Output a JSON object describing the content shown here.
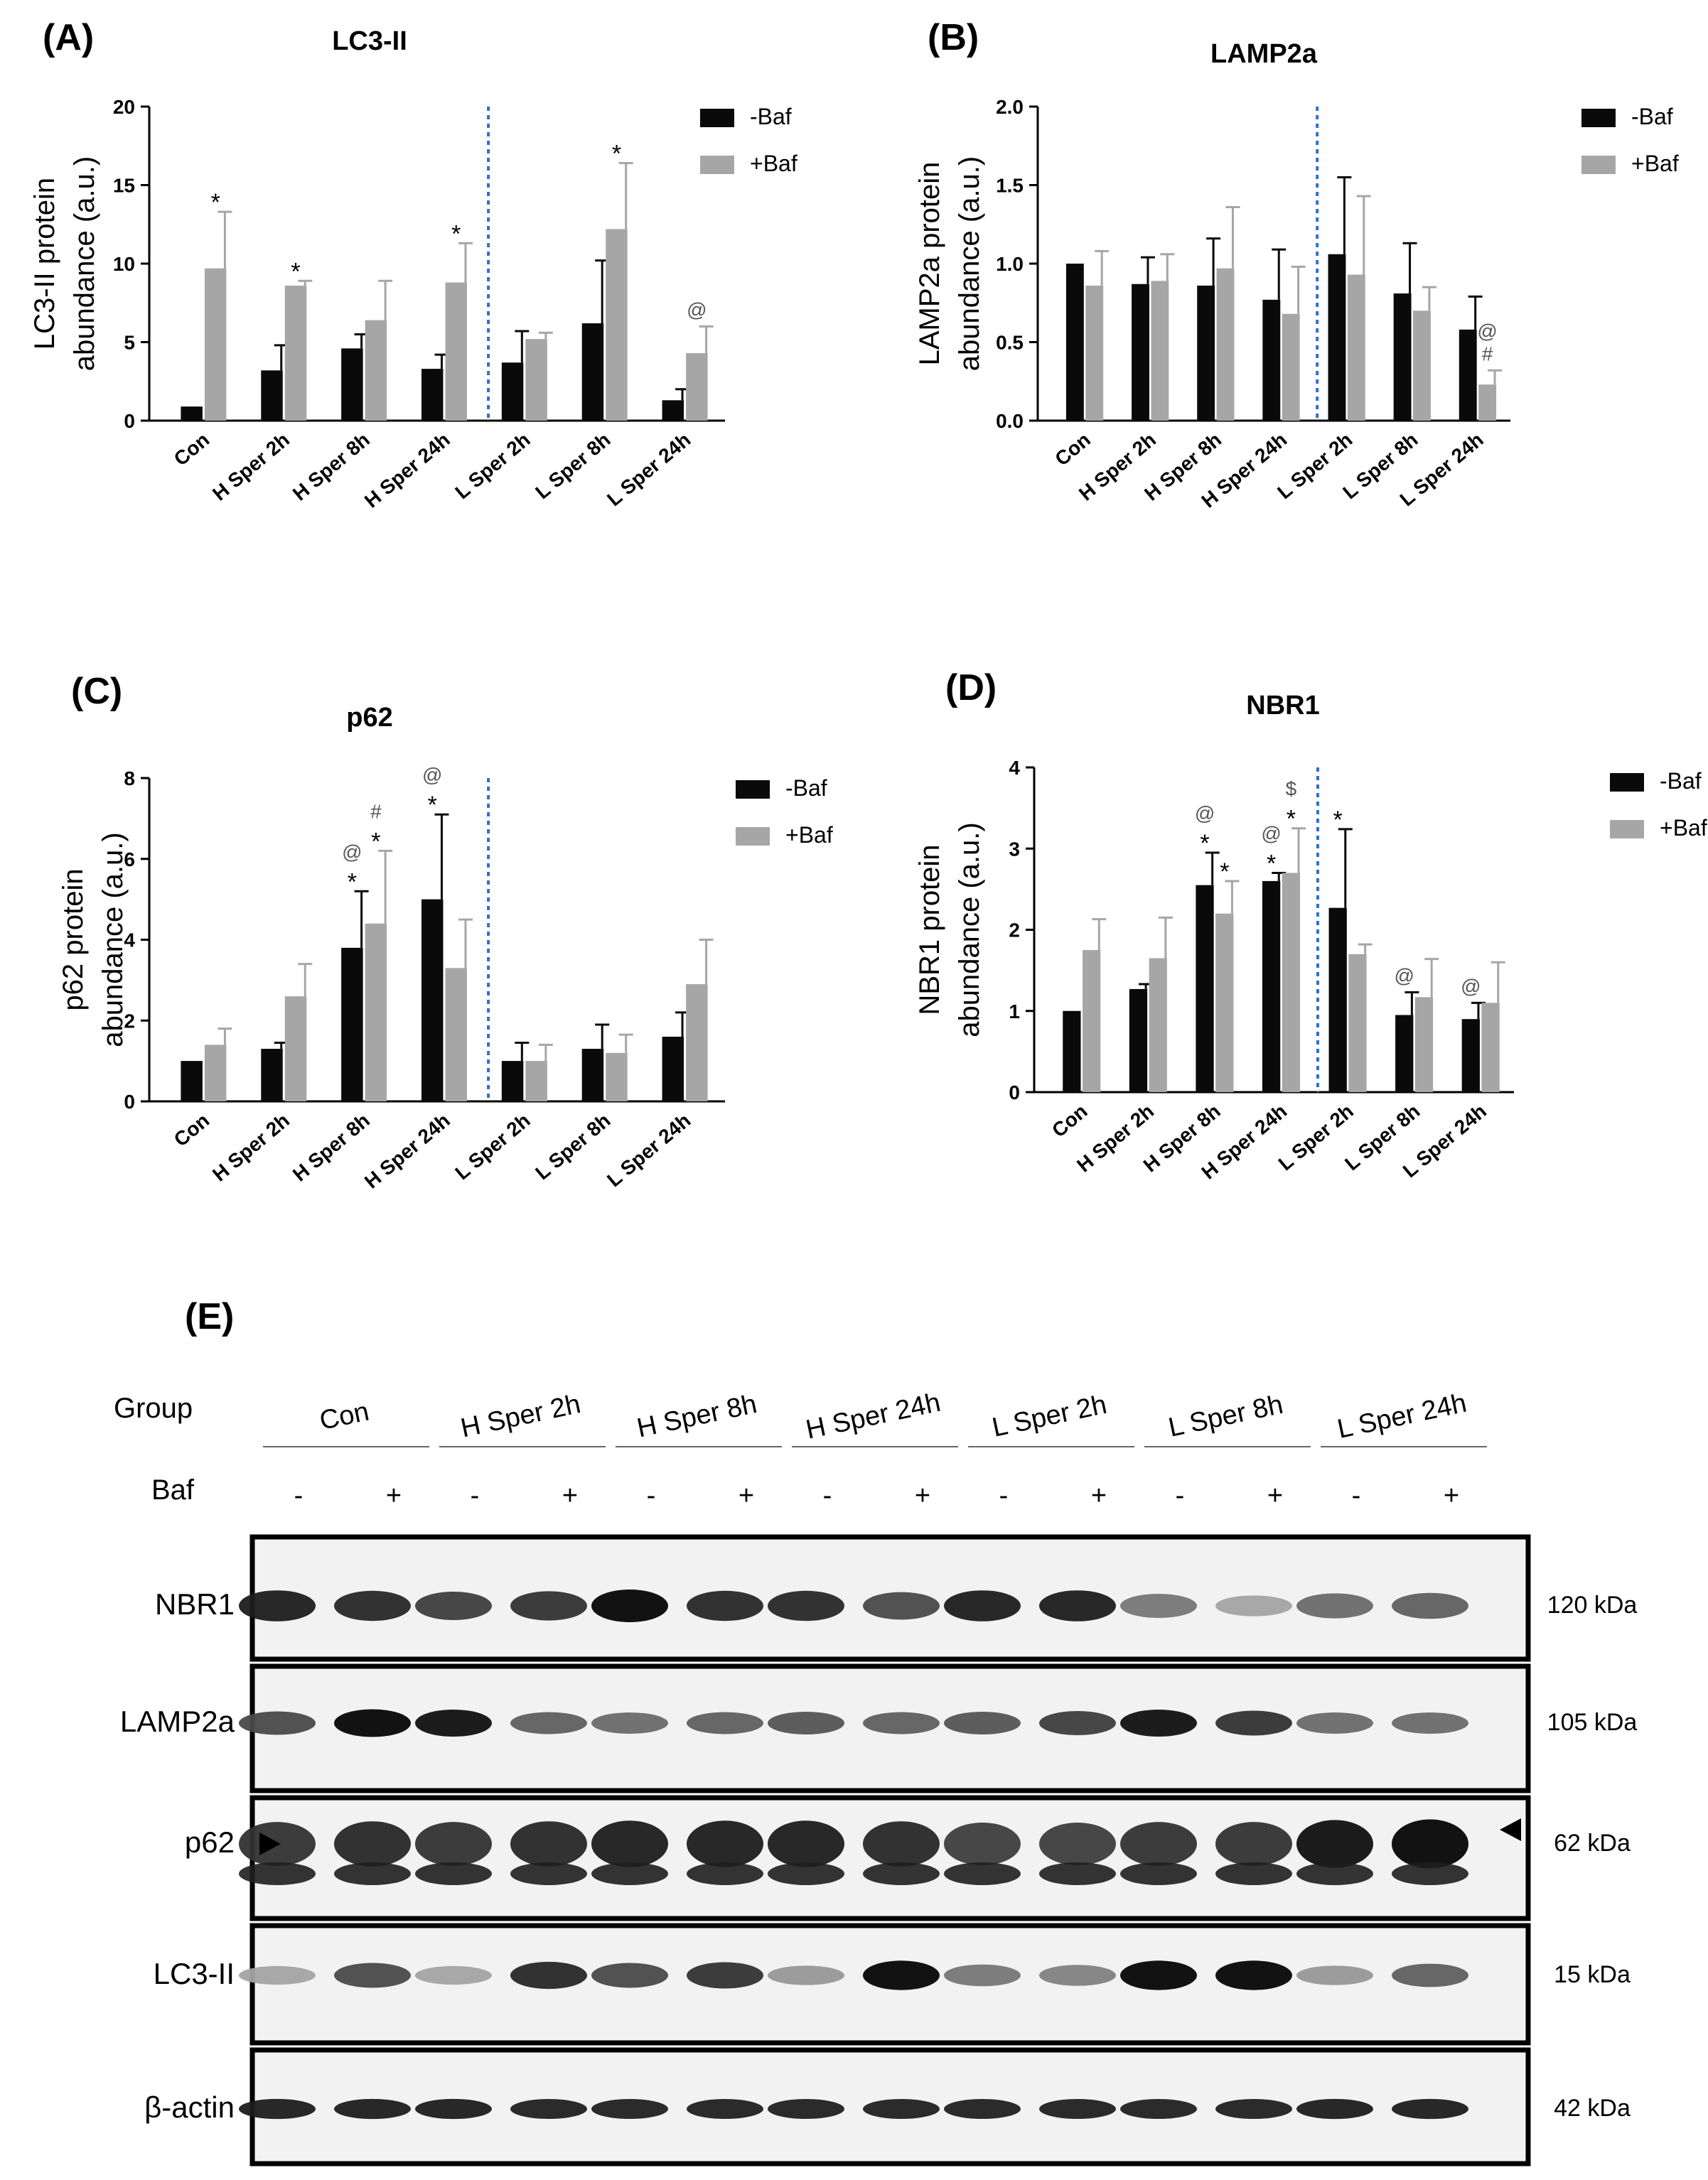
{
  "colors": {
    "minus_baf": "#0a0a0a",
    "plus_baf": "#a6a6a6",
    "divider": "#2f6fd6",
    "annotation_gray": "#555555"
  },
  "legend": {
    "minus": "-Baf",
    "plus": "+Baf"
  },
  "chart_data": [
    {
      "panel": "(A)",
      "title": "LC3-II",
      "type": "bar",
      "ylabel_lines": [
        "LC3-II protein",
        "abundance (a.u.)"
      ],
      "ylim": [
        0,
        20
      ],
      "yticks": [
        0,
        5,
        10,
        15,
        20
      ],
      "categories": [
        "Con",
        "H Sper 2h",
        "H Sper 8h",
        "H Sper 24h",
        "L Sper 2h",
        "L Sper 8h",
        "L Sper 24h"
      ],
      "divider_after_index": 3,
      "series": [
        {
          "name": "-Baf",
          "values": [
            0.9,
            3.2,
            4.6,
            3.3,
            3.7,
            6.2,
            1.3
          ],
          "errors": [
            0.0,
            1.6,
            0.9,
            0.9,
            2.0,
            4.0,
            0.7
          ]
        },
        {
          "name": "+Baf",
          "values": [
            9.7,
            8.6,
            6.4,
            8.8,
            5.2,
            12.2,
            4.3
          ],
          "errors": [
            3.6,
            0.3,
            2.5,
            2.5,
            0.4,
            4.2,
            1.7
          ]
        }
      ],
      "annotations": [
        {
          "index": 0,
          "series": 1,
          "lines": [
            "*"
          ]
        },
        {
          "index": 1,
          "series": 1,
          "lines": [
            "*"
          ]
        },
        {
          "index": 3,
          "series": 1,
          "lines": [
            "*"
          ]
        },
        {
          "index": 5,
          "series": 1,
          "lines": [
            "*"
          ]
        },
        {
          "index": 6,
          "series": 1,
          "lines": [
            "@"
          ]
        }
      ]
    },
    {
      "panel": "(B)",
      "title": "LAMP2a",
      "type": "bar",
      "ylabel_lines": [
        "LAMP2a protein",
        "abundance (a.u.)"
      ],
      "ylim": [
        0,
        2.0
      ],
      "yticks": [
        0.0,
        0.5,
        1.0,
        1.5,
        2.0
      ],
      "ytick_labels": [
        "0.0",
        "0.5",
        "1.0",
        "1.5",
        "2.0"
      ],
      "categories": [
        "Con",
        "H Sper 2h",
        "H Sper 8h",
        "H Sper 24h",
        "L Sper 2h",
        "L Sper 8h",
        "L Sper 24h"
      ],
      "divider_after_index": 3,
      "series": [
        {
          "name": "-Baf",
          "values": [
            1.0,
            0.87,
            0.86,
            0.77,
            1.06,
            0.81,
            0.58
          ],
          "errors": [
            0.0,
            0.17,
            0.3,
            0.32,
            0.49,
            0.32,
            0.21
          ]
        },
        {
          "name": "+Baf",
          "values": [
            0.86,
            0.89,
            0.97,
            0.68,
            0.93,
            0.7,
            0.23
          ],
          "errors": [
            0.22,
            0.17,
            0.39,
            0.3,
            0.5,
            0.15,
            0.09
          ]
        }
      ],
      "annotations": [
        {
          "index": 6,
          "series": 1,
          "lines": [
            "@",
            "#"
          ]
        }
      ]
    },
    {
      "panel": "(C)",
      "title": "p62",
      "type": "bar",
      "ylabel_lines": [
        "p62 protein",
        "abundance (a.u.)"
      ],
      "ylim": [
        0,
        8
      ],
      "yticks": [
        0,
        2,
        4,
        6,
        8
      ],
      "categories": [
        "Con",
        "H Sper 2h",
        "H Sper 8h",
        "H Sper 24h",
        "L Sper 2h",
        "L Sper 8h",
        "L Sper 24h"
      ],
      "divider_after_index": 3,
      "series": [
        {
          "name": "-Baf",
          "values": [
            1.0,
            1.3,
            3.8,
            5.0,
            1.0,
            1.3,
            1.6
          ],
          "errors": [
            0.0,
            0.15,
            1.4,
            2.1,
            0.45,
            0.6,
            0.6
          ]
        },
        {
          "name": "+Baf",
          "values": [
            1.4,
            2.6,
            4.4,
            3.3,
            1.0,
            1.2,
            2.9
          ],
          "errors": [
            0.4,
            0.8,
            1.8,
            1.2,
            0.4,
            0.45,
            1.1
          ]
        }
      ],
      "annotations": [
        {
          "index": 2,
          "series": 0,
          "lines": [
            "@",
            "*"
          ]
        },
        {
          "index": 2,
          "series": 1,
          "lines": [
            "#",
            "*"
          ]
        },
        {
          "index": 3,
          "series": 0,
          "lines": [
            "@",
            "*"
          ]
        }
      ]
    },
    {
      "panel": "(D)",
      "title": "NBR1",
      "type": "bar",
      "ylabel_lines": [
        "NBR1 protein",
        "abundance (a.u.)"
      ],
      "ylim": [
        0,
        4
      ],
      "yticks": [
        0,
        1,
        2,
        3,
        4
      ],
      "categories": [
        "Con",
        "H Sper 2h",
        "H Sper 8h",
        "H Sper 24h",
        "L Sper 2h",
        "L Sper 8h",
        "L Sper 24h"
      ],
      "divider_after_index": 3,
      "series": [
        {
          "name": "-Baf",
          "values": [
            1.0,
            1.27,
            2.55,
            2.6,
            2.27,
            0.95,
            0.9
          ],
          "errors": [
            0.0,
            0.06,
            0.4,
            0.1,
            0.97,
            0.28,
            0.2
          ]
        },
        {
          "name": "+Baf",
          "values": [
            1.75,
            1.65,
            2.2,
            2.7,
            1.7,
            1.17,
            1.1
          ],
          "errors": [
            0.38,
            0.5,
            0.4,
            0.55,
            0.12,
            0.47,
            0.5
          ]
        }
      ],
      "annotations": [
        {
          "index": 2,
          "series": 0,
          "lines": [
            "@",
            "*"
          ]
        },
        {
          "index": 2,
          "series": 1,
          "lines": [
            "*"
          ]
        },
        {
          "index": 3,
          "series": 0,
          "lines": [
            "@",
            "*"
          ]
        },
        {
          "index": 3,
          "series": 1,
          "lines": [
            "$",
            "*"
          ]
        },
        {
          "index": 4,
          "series": 0,
          "lines": [
            "*"
          ]
        },
        {
          "index": 5,
          "series": 0,
          "lines": [
            "@"
          ]
        },
        {
          "index": 6,
          "series": 0,
          "lines": [
            "@"
          ]
        }
      ]
    }
  ],
  "blot": {
    "panel": "(E)",
    "group_label": "Group",
    "baf_label": "Baf",
    "groups": [
      "Con",
      "H Sper 2h",
      "H Sper 8h",
      "H Sper 24h",
      "L Sper 2h",
      "L Sper 8h",
      "L Sper 24h"
    ],
    "baf_signs": [
      "-",
      "+",
      "-",
      "+",
      "-",
      "+",
      "-",
      "+",
      "-",
      "+",
      "-",
      "+",
      "-",
      "+"
    ],
    "rows": [
      {
        "label": "NBR1",
        "kda": "120 kDa",
        "intensity": [
          0.9,
          0.85,
          0.75,
          0.8,
          1.0,
          0.85,
          0.85,
          0.7,
          0.9,
          0.9,
          0.5,
          0.3,
          0.55,
          0.6
        ]
      },
      {
        "label": "LAMP2a",
        "kda": "105 kDa",
        "intensity": [
          0.7,
          1.0,
          0.95,
          0.6,
          0.55,
          0.6,
          0.65,
          0.6,
          0.65,
          0.75,
          0.95,
          0.8,
          0.55,
          0.55
        ]
      },
      {
        "label": "p62",
        "kda": "62 kDa",
        "intensity": [
          0.8,
          0.85,
          0.8,
          0.85,
          0.9,
          0.9,
          0.9,
          0.85,
          0.75,
          0.75,
          0.8,
          0.8,
          0.95,
          1.0
        ]
      },
      {
        "label": "LC3-II",
        "kda": "15 kDa",
        "intensity": [
          0.3,
          0.7,
          0.3,
          0.85,
          0.7,
          0.8,
          0.35,
          1.0,
          0.5,
          0.45,
          1.0,
          1.0,
          0.35,
          0.6
        ]
      },
      {
        "label": "β-actin",
        "kda": "42 kDa",
        "intensity": [
          0.9,
          0.9,
          0.9,
          0.88,
          0.88,
          0.88,
          0.88,
          0.88,
          0.88,
          0.88,
          0.88,
          0.88,
          0.9,
          0.9
        ]
      }
    ]
  }
}
